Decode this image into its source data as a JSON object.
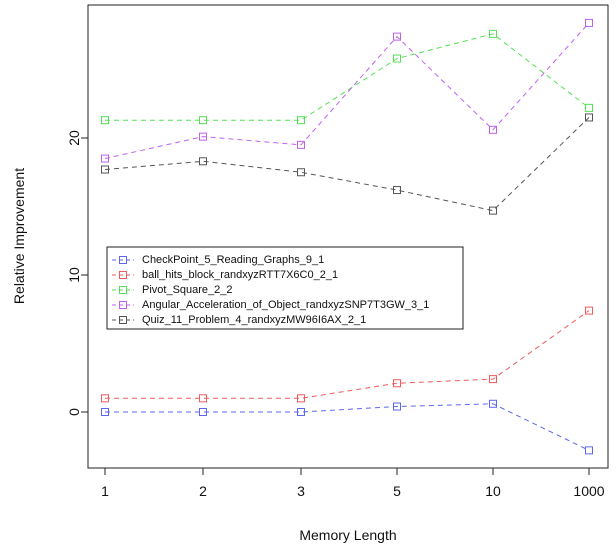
{
  "chart_data": {
    "type": "line",
    "xlabel": "Memory Length",
    "ylabel": "Relative Improvement",
    "x": [
      "1",
      "2",
      "3",
      "5",
      "10",
      "1000"
    ],
    "y_ticks": [
      0,
      10,
      20
    ],
    "ylim": [
      -3.2,
      29.5
    ],
    "grid": false,
    "legend_position": "center-left",
    "series": [
      {
        "name": "CheckPoint_5_Reading_Graphs_9_1",
        "color": "#5b67f0",
        "values": [
          0.0,
          0.0,
          0.0,
          0.4,
          0.6,
          -2.8
        ]
      },
      {
        "name": "ball_hits_block_randxyzRTT7X6C0_2_1",
        "color": "#f05b5b",
        "values": [
          1.0,
          1.0,
          1.0,
          2.1,
          2.4,
          7.4
        ]
      },
      {
        "name": "Pivot_Square_2_2",
        "color": "#55e055",
        "values": [
          21.3,
          21.3,
          21.3,
          25.8,
          27.6,
          22.2
        ]
      },
      {
        "name": "Angular_Acceleration_of_Object_randxyzSNP7T3GW_3_1",
        "color": "#c060f0",
        "values": [
          18.5,
          20.1,
          19.5,
          27.4,
          20.6,
          28.4
        ]
      },
      {
        "name": "Quiz_11_Problem_4_randxyzMW96I6AX_2_1",
        "color": "#555555",
        "values": [
          17.7,
          18.3,
          17.5,
          16.2,
          14.7,
          21.5
        ]
      }
    ]
  }
}
